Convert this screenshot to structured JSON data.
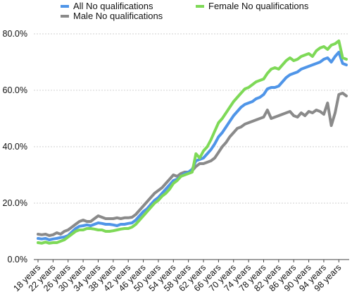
{
  "chart_data": {
    "type": "line",
    "title": "",
    "xlabel": "",
    "ylabel": "",
    "ylim": [
      0,
      80
    ],
    "yticks": [
      "0.0%",
      "20.0%",
      "40.0%",
      "60.0%",
      "80.0%"
    ],
    "x_tick_labels": [
      "18 years",
      "22 years",
      "26 years",
      "30 years",
      "34 years",
      "38 years",
      "42 years",
      "46 years",
      "50 years",
      "54 years",
      "58 years",
      "62 years",
      "66 years",
      "70 years",
      "74 years",
      "78 years",
      "82 years",
      "86 years",
      "90 years",
      "94 years",
      "98 years"
    ],
    "x_start_age": 18,
    "x": [
      18,
      19,
      20,
      21,
      22,
      23,
      24,
      25,
      26,
      27,
      28,
      29,
      30,
      31,
      32,
      33,
      34,
      35,
      36,
      37,
      38,
      39,
      40,
      41,
      42,
      43,
      44,
      45,
      46,
      47,
      48,
      49,
      50,
      51,
      52,
      53,
      54,
      55,
      56,
      57,
      58,
      59,
      60,
      61,
      62,
      63,
      64,
      65,
      66,
      67,
      68,
      69,
      70,
      71,
      72,
      73,
      74,
      75,
      76,
      77,
      78,
      79,
      80,
      81,
      82,
      83,
      84,
      85,
      86,
      87,
      88,
      89,
      90,
      91,
      92,
      93,
      94,
      95,
      96,
      97,
      98,
      99,
      100
    ],
    "grid": "horizontal",
    "legend_position": "top",
    "series": [
      {
        "name": "All No qualifications",
        "color": "#4f95e8",
        "values": [
          7.5,
          7.3,
          7.5,
          7.0,
          7.3,
          7.5,
          7.8,
          8.0,
          8.5,
          9.8,
          11.0,
          11.8,
          12.0,
          12.3,
          12.0,
          12.5,
          13.0,
          12.8,
          12.5,
          12.5,
          12.3,
          12.0,
          12.5,
          12.5,
          12.8,
          13.0,
          14.0,
          15.5,
          17.0,
          18.0,
          19.5,
          21.0,
          22.0,
          23.5,
          25.0,
          26.5,
          28.0,
          28.5,
          29.5,
          30.5,
          31.0,
          32.0,
          35.0,
          35.5,
          36.0,
          37.5,
          39.0,
          41.0,
          43.5,
          45.0,
          47.0,
          49.0,
          51.0,
          52.5,
          54.0,
          55.0,
          55.5,
          56.0,
          57.0,
          57.5,
          58.5,
          60.5,
          61.0,
          61.0,
          61.5,
          63.0,
          64.5,
          65.5,
          66.0,
          66.5,
          67.5,
          68.0,
          68.5,
          69.0,
          69.5,
          70.0,
          71.0,
          71.5,
          70.0,
          72.0,
          73.5,
          69.5,
          69.0
        ]
      },
      {
        "name": "Female No qualifications",
        "color": "#7ed957",
        "values": [
          6.0,
          5.8,
          6.2,
          5.8,
          6.0,
          6.0,
          6.5,
          7.0,
          8.0,
          9.0,
          10.0,
          10.5,
          10.5,
          11.0,
          11.0,
          10.8,
          10.5,
          10.5,
          10.0,
          10.0,
          10.2,
          10.5,
          10.8,
          11.0,
          11.0,
          11.5,
          12.5,
          14.0,
          15.5,
          17.0,
          18.5,
          20.0,
          21.0,
          22.5,
          23.5,
          25.0,
          27.0,
          28.0,
          29.5,
          30.0,
          30.5,
          31.0,
          37.5,
          36.0,
          38.5,
          40.0,
          42.5,
          45.5,
          48.5,
          50.0,
          52.0,
          54.0,
          56.0,
          57.5,
          59.0,
          60.5,
          61.0,
          62.0,
          63.0,
          63.5,
          64.0,
          66.0,
          67.5,
          68.0,
          67.5,
          69.0,
          70.5,
          71.5,
          70.5,
          71.0,
          72.0,
          72.5,
          73.0,
          72.0,
          74.0,
          75.0,
          75.5,
          74.5,
          76.0,
          76.5,
          77.5,
          71.5,
          71.0
        ]
      },
      {
        "name": "Male No qualifications",
        "color": "#8a8a8a",
        "values": [
          9.0,
          8.8,
          9.0,
          8.5,
          8.8,
          9.5,
          9.0,
          10.0,
          10.5,
          11.5,
          12.5,
          13.5,
          14.0,
          13.5,
          13.5,
          14.5,
          15.5,
          15.0,
          14.5,
          14.5,
          14.5,
          14.8,
          14.5,
          14.8,
          14.8,
          15.0,
          16.0,
          17.5,
          19.0,
          20.5,
          22.0,
          23.5,
          24.5,
          25.5,
          27.0,
          28.5,
          30.0,
          29.5,
          30.5,
          31.0,
          31.0,
          31.5,
          33.0,
          34.0,
          34.0,
          34.5,
          35.0,
          36.0,
          38.0,
          40.0,
          41.5,
          43.5,
          45.0,
          46.5,
          47.0,
          48.0,
          48.5,
          49.0,
          49.5,
          50.0,
          50.5,
          53.0,
          50.0,
          50.5,
          51.0,
          51.5,
          52.0,
          52.5,
          51.0,
          50.5,
          52.0,
          51.0,
          52.5,
          52.0,
          53.0,
          52.5,
          51.5,
          55.5,
          47.5,
          52.0,
          58.5,
          59.0,
          58.0
        ]
      }
    ]
  }
}
